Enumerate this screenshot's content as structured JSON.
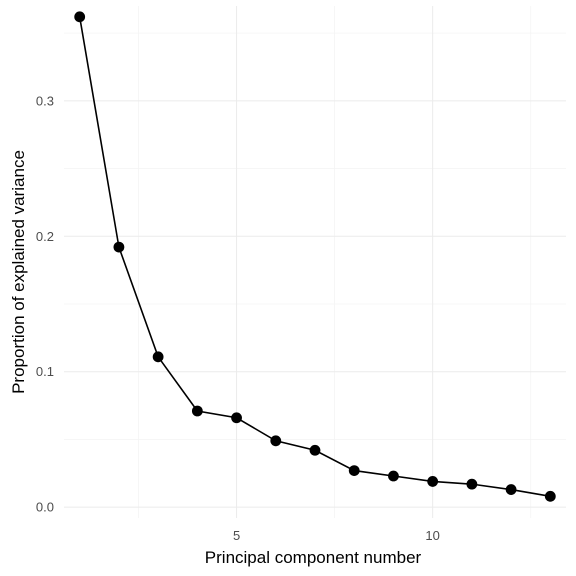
{
  "chart_data": {
    "type": "line",
    "title": "",
    "xlabel": "Principal component number",
    "ylabel": "Proportion of explained variance",
    "xlim": [
      0.6,
      13.4
    ],
    "ylim": [
      -0.008,
      0.37
    ],
    "x_ticks": [
      5,
      10
    ],
    "x_tick_labels": [
      "5",
      "10"
    ],
    "y_ticks": [
      0.0,
      0.1,
      0.2,
      0.3
    ],
    "y_tick_labels": [
      "0.0",
      "0.1",
      "0.2",
      "0.3"
    ],
    "grid": true,
    "legend": "none",
    "x": [
      1,
      2,
      3,
      4,
      5,
      6,
      7,
      8,
      9,
      10,
      11,
      12,
      13
    ],
    "series": [
      {
        "values": [
          0.362,
          0.192,
          0.111,
          0.071,
          0.066,
          0.049,
          0.042,
          0.027,
          0.023,
          0.019,
          0.017,
          0.013,
          0.008
        ],
        "color": "#000000"
      }
    ]
  }
}
